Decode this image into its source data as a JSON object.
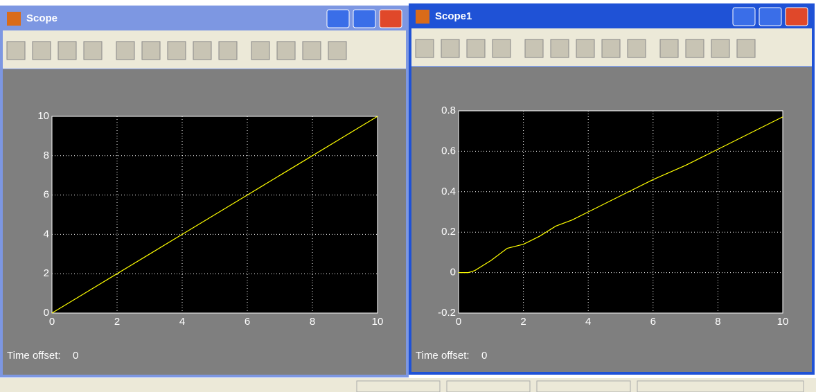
{
  "windows": [
    {
      "title": "Scope",
      "time_offset_label": "Time offset:",
      "time_offset": 0,
      "chart_data": {
        "type": "line",
        "x": [
          0,
          1,
          2,
          3,
          4,
          5,
          6,
          7,
          8,
          9,
          10
        ],
        "series": [
          {
            "color": "#ffff00",
            "values": [
              0,
              1,
              2,
              3,
              4,
              5,
              6,
              7,
              8,
              9,
              10
            ]
          }
        ],
        "xlim": [
          0,
          10
        ],
        "ylim": [
          0,
          10
        ],
        "xticks": [
          0,
          2,
          4,
          6,
          8,
          10
        ],
        "yticks": [
          0,
          2,
          4,
          6,
          8,
          10
        ],
        "grid": true
      }
    },
    {
      "title": "Scope1",
      "time_offset_label": "Time offset:",
      "time_offset": 0,
      "chart_data": {
        "type": "line",
        "x": [
          0,
          0.3,
          0.5,
          1,
          1.5,
          2,
          2.5,
          3,
          3.5,
          4,
          5,
          6,
          7,
          8,
          9,
          10
        ],
        "series": [
          {
            "color": "#ffff00",
            "values": [
              0,
              0,
              0.01,
              0.06,
              0.12,
              0.14,
              0.18,
              0.23,
              0.26,
              0.3,
              0.38,
              0.46,
              0.53,
              0.61,
              0.69,
              0.77
            ]
          }
        ],
        "xlim": [
          0,
          10
        ],
        "ylim": [
          -0.2,
          0.8
        ],
        "xticks": [
          0,
          2,
          4,
          6,
          8,
          10
        ],
        "yticks": [
          -0.2,
          0,
          0.2,
          0.4,
          0.6,
          0.8
        ],
        "grid": true
      }
    }
  ]
}
